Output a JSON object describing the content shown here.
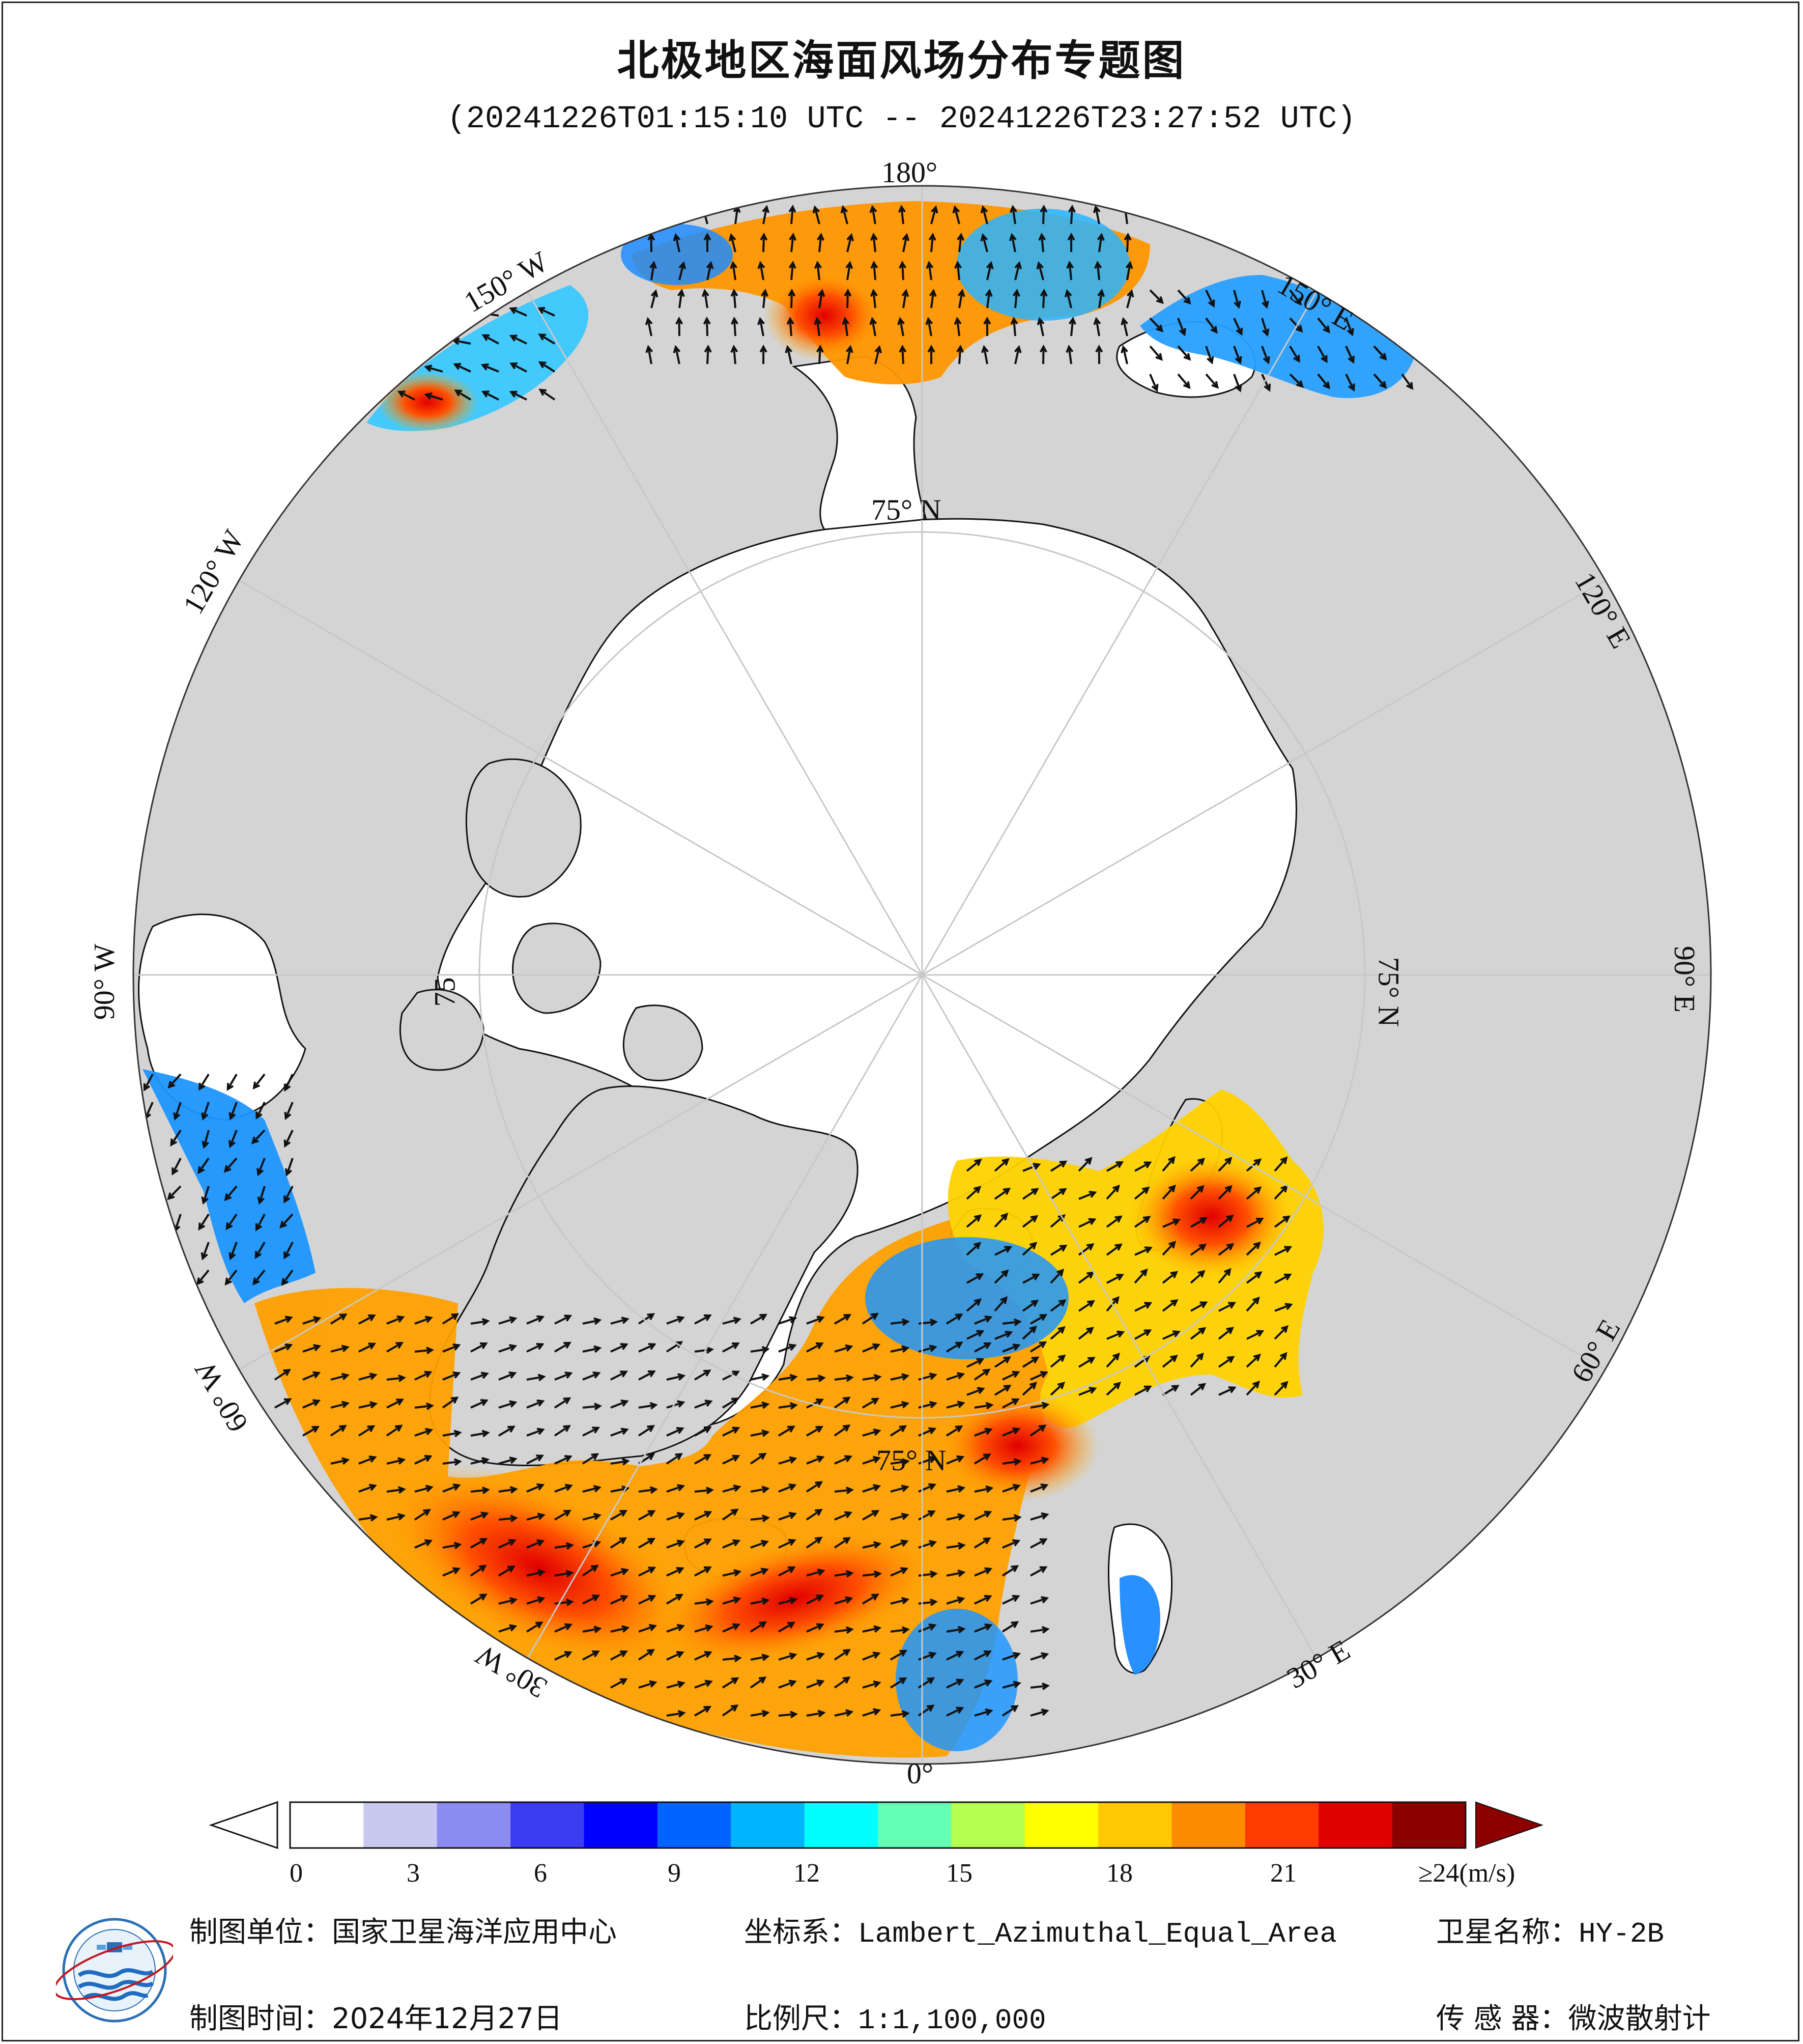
{
  "title": "北极地区海面风场分布专题图",
  "subtitle": "(20241226T01:15:10 UTC -- 20241226T23:27:52 UTC)",
  "map": {
    "projection": "Lambert_Azimuthal_Equal_Area",
    "center": "North Pole",
    "longitude_labels": [
      "180°",
      "150° E",
      "120° E",
      "90° E",
      "60° E",
      "30° E",
      "0°",
      "30° W",
      "60° W",
      "90° W",
      "120° W",
      "150° W"
    ],
    "latitude_labels": [
      "75° N",
      "75° N",
      "75",
      "75° N"
    ],
    "colors": {
      "ocean_sea_ice": "#ffffff",
      "land": "#d4d4d4",
      "coast": "#111111",
      "graticule": "#c8c8c8"
    }
  },
  "colorbar": {
    "unit": "(m/s)",
    "ticks": [
      "0",
      "3",
      "6",
      "9",
      "12",
      "15",
      "18",
      "21",
      "≥24"
    ],
    "range": [
      0,
      24
    ],
    "colors": [
      "#ffffff",
      "#c8c8f0",
      "#8c8cf0",
      "#3c3cf0",
      "#0000ff",
      "#0064ff",
      "#00b4ff",
      "#00ffff",
      "#64ffb4",
      "#b4ff50",
      "#ffff00",
      "#ffc800",
      "#ff8c00",
      "#ff3c00",
      "#e10000",
      "#8c0000"
    ]
  },
  "footer": {
    "unit_label": "制图单位：",
    "unit_value": "国家卫星海洋应用中心",
    "date_label": "制图时间：",
    "date_value": "2024年12月27日",
    "crs_label": "坐标系：",
    "crs_value": "Lambert_Azimuthal_Equal_Area",
    "scale_label": "比例尺：",
    "scale_value": "1:1,100,000",
    "satellite_label": "卫星名称：",
    "satellite_value": "HY-2B",
    "sensor_label": "传 感 器：",
    "sensor_value": "微波散射计"
  }
}
